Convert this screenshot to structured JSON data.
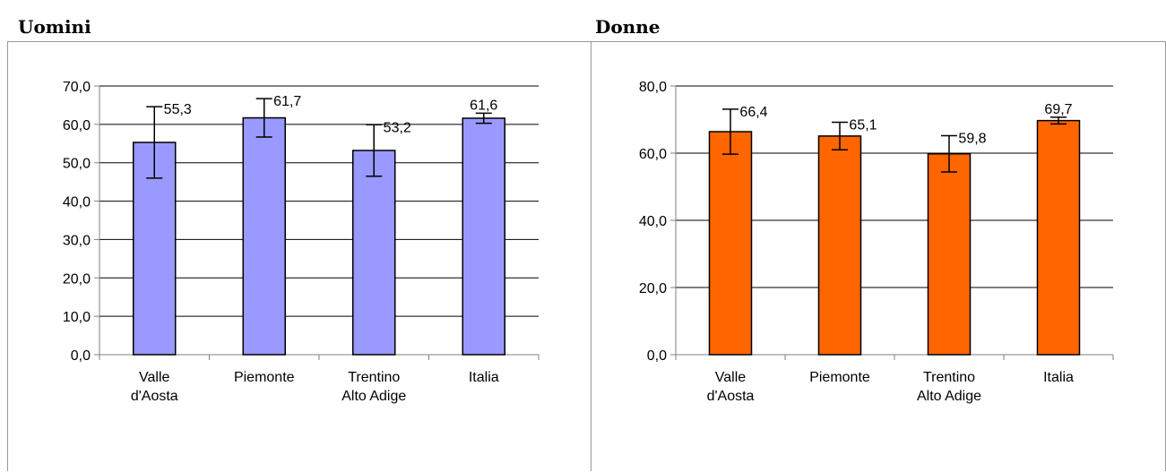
{
  "charts": [
    {
      "heading": "Uomini",
      "bar_color": "#9999ff"
    },
    {
      "heading": "Donne",
      "bar_color": "#ff6600"
    }
  ],
  "chart_data": [
    {
      "type": "bar",
      "title": "Uomini",
      "categories": [
        [
          "Valle",
          "d'Aosta"
        ],
        [
          "Piemonte"
        ],
        [
          "Trentino",
          "Alto Adige"
        ],
        [
          "Italia"
        ]
      ],
      "values": [
        55.3,
        61.7,
        53.2,
        61.6
      ],
      "value_labels": [
        "55,3",
        "61,7",
        "53,2",
        "61,6"
      ],
      "error_low": [
        46.0,
        56.7,
        46.5,
        60.3
      ],
      "error_high": [
        64.6,
        66.7,
        59.9,
        62.9
      ],
      "ylim": [
        0,
        70
      ],
      "yticks": [
        0,
        10,
        20,
        30,
        40,
        50,
        60,
        70
      ],
      "ytick_labels": [
        "0,0",
        "10,0",
        "20,0",
        "30,0",
        "40,0",
        "50,0",
        "60,0",
        "70,0"
      ],
      "grid": true,
      "xlabel": "",
      "ylabel": ""
    },
    {
      "type": "bar",
      "title": "Donne",
      "categories": [
        [
          "Valle",
          "d'Aosta"
        ],
        [
          "Piemonte"
        ],
        [
          "Trentino",
          "Alto Adige"
        ],
        [
          "Italia"
        ]
      ],
      "values": [
        66.4,
        65.1,
        59.8,
        69.7
      ],
      "value_labels": [
        "66,4",
        "65,1",
        "59,8",
        "69,7"
      ],
      "error_low": [
        59.7,
        61.0,
        54.4,
        68.7
      ],
      "error_high": [
        73.1,
        69.2,
        65.2,
        70.7
      ],
      "ylim": [
        0,
        80
      ],
      "yticks": [
        0,
        20,
        40,
        60,
        80
      ],
      "ytick_labels": [
        "0,0",
        "20,0",
        "40,0",
        "60,0",
        "80,0"
      ],
      "grid": true,
      "xlabel": "",
      "ylabel": ""
    }
  ]
}
